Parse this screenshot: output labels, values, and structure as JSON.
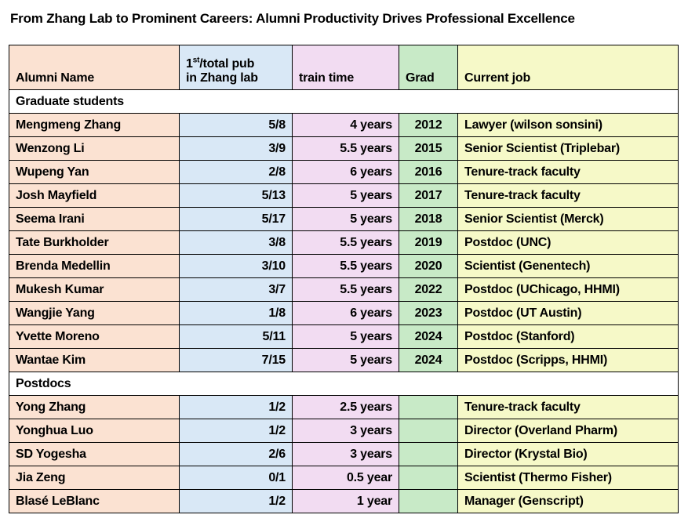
{
  "title": "From Zhang Lab to Prominent Careers: Alumni Productivity Drives Professional Excellence",
  "palette": {
    "name_col": "#FBE2D2",
    "pub_col": "#D9E8F6",
    "train_col": "#F2DCF2",
    "grad_col": "#C8EAC7",
    "job_col": "#F6F9C8",
    "section_bg": "#FFFFFF",
    "border": "#000000"
  },
  "headers": {
    "name": "Alumni Name",
    "pub_line1_pre": "1",
    "pub_sup": "st",
    "pub_line1_post": "/total pub",
    "pub_line2": "in Zhang lab",
    "train": "train time",
    "grad": "Grad",
    "job": "Current job"
  },
  "chart_data": {
    "type": "table",
    "title": "From Zhang Lab to Prominent Careers: Alumni Productivity Drives Professional Excellence",
    "columns": [
      "Alumni Name",
      "1st/total pub in Zhang lab",
      "train time",
      "Grad",
      "Current job"
    ],
    "sections": [
      {
        "label": "Graduate students",
        "rows": [
          {
            "name": "Mengmeng Zhang",
            "pub": "5/8",
            "train": "4 years",
            "grad": "2012",
            "job": "Lawyer (wilson sonsini)"
          },
          {
            "name": "Wenzong Li",
            "pub": "3/9",
            "train": "5.5 years",
            "grad": "2015",
            "job": "Senior Scientist (Triplebar)"
          },
          {
            "name": "Wupeng Yan",
            "pub": "2/8",
            "train": "6 years",
            "grad": "2016",
            "job": "Tenure-track faculty"
          },
          {
            "name": "Josh Mayfield",
            "pub": "5/13",
            "train": "5 years",
            "grad": "2017",
            "job": "Tenure-track faculty"
          },
          {
            "name": "Seema Irani",
            "pub": "5/17",
            "train": "5 years",
            "grad": "2018",
            "job": "Senior Scientist (Merck)"
          },
          {
            "name": "Tate Burkholder",
            "pub": "3/8",
            "train": "5.5 years",
            "grad": "2019",
            "job": "Postdoc (UNC)"
          },
          {
            "name": "Brenda Medellin",
            "pub": "3/10",
            "train": "5.5 years",
            "grad": "2020",
            "job": "Scientist (Genentech)"
          },
          {
            "name": "Mukesh Kumar",
            "pub": "3/7",
            "train": "5.5 years",
            "grad": "2022",
            "job": "Postdoc (UChicago, HHMI)"
          },
          {
            "name": "Wangjie Yang",
            "pub": "1/8",
            "train": "6 years",
            "grad": "2023",
            "job": "Postdoc (UT Austin)"
          },
          {
            "name": "Yvette Moreno",
            "pub": "5/11",
            "train": "5 years",
            "grad": "2024",
            "job": "Postdoc (Stanford)"
          },
          {
            "name": "Wantae Kim",
            "pub": "7/15",
            "train": "5 years",
            "grad": "2024",
            "job": "Postdoc (Scripps, HHMI)"
          }
        ]
      },
      {
        "label": "Postdocs",
        "rows": [
          {
            "name": "Yong Zhang",
            "pub": "1/2",
            "train": "2.5 years",
            "grad": "",
            "job": "Tenure-track faculty"
          },
          {
            "name": "Yonghua Luo",
            "pub": "1/2",
            "train": "3 years",
            "grad": "",
            "job": "Director (Overland Pharm)"
          },
          {
            "name": "SD Yogesha",
            "pub": "2/6",
            "train": "3 years",
            "grad": "",
            "job": "Director (Krystal Bio)"
          },
          {
            "name": "Jia Zeng",
            "pub": "0/1",
            "train": "0.5 year",
            "grad": "",
            "job": "Scientist (Thermo Fisher)"
          },
          {
            "name": "Blasé LeBlanc",
            "pub": "1/2",
            "train": "1 year",
            "grad": "",
            "job": "Manager (Genscript)"
          }
        ]
      }
    ]
  }
}
